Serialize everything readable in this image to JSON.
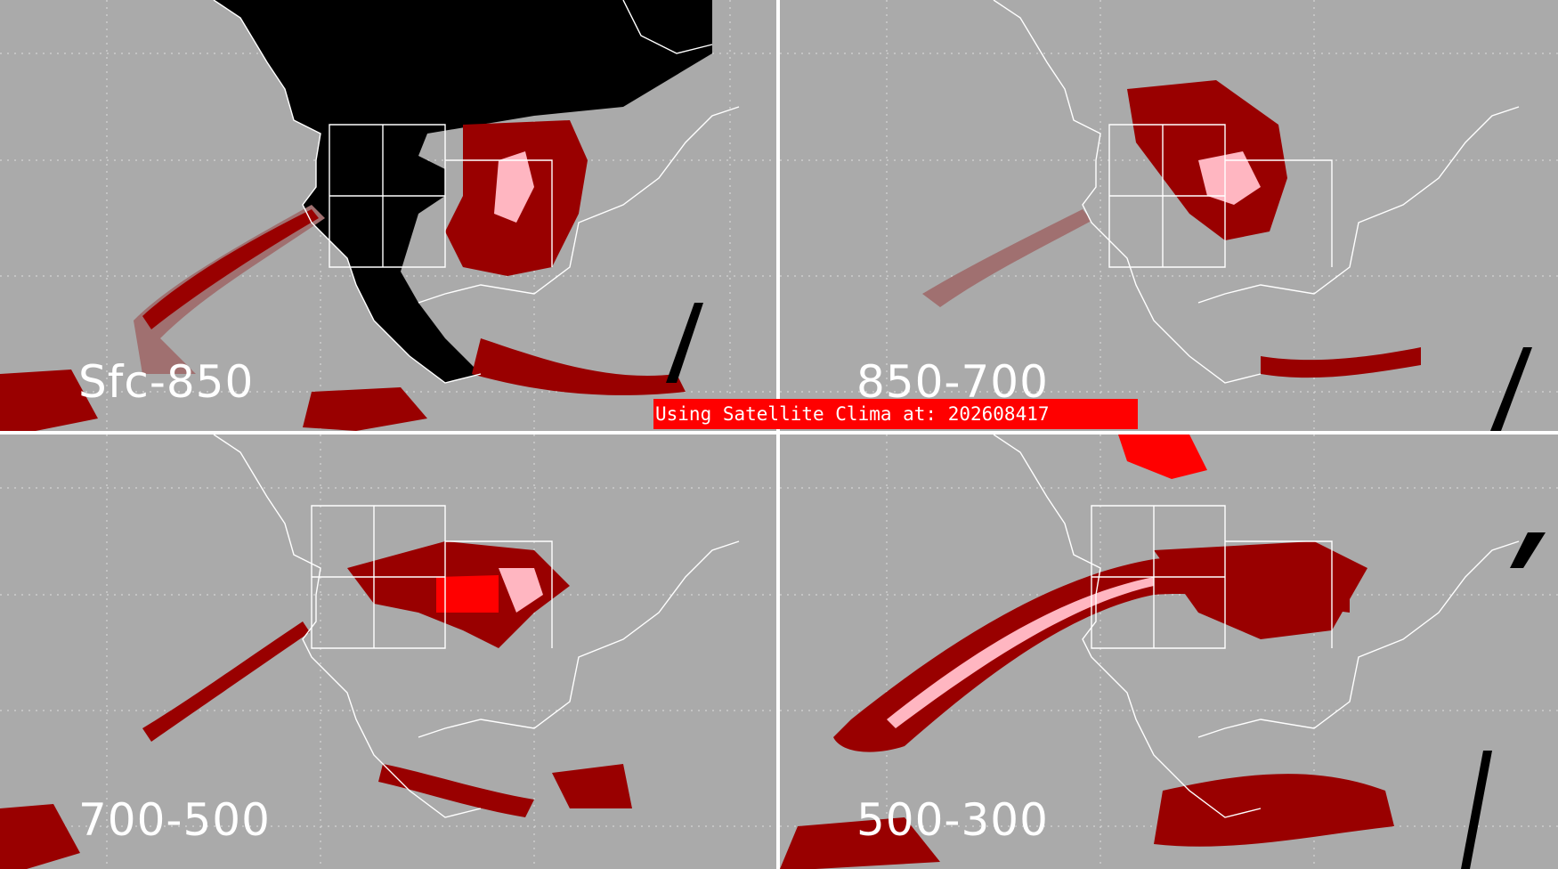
{
  "title_banner": "Using Satellite Clima at: 202608417",
  "colors": {
    "background": "#aaaaaa",
    "dark_red": "#990000",
    "red": "#ff0000",
    "pink": "#ffb6c1",
    "mauve": "#a07070",
    "black": "#000000",
    "lines": "#ffffff"
  },
  "panels": [
    {
      "id": "sfc-850",
      "label": "Sfc-850"
    },
    {
      "id": "850-700",
      "label": "850-700"
    },
    {
      "id": "700-500",
      "label": "700-500"
    },
    {
      "id": "500-300",
      "label": "500-300"
    }
  ]
}
